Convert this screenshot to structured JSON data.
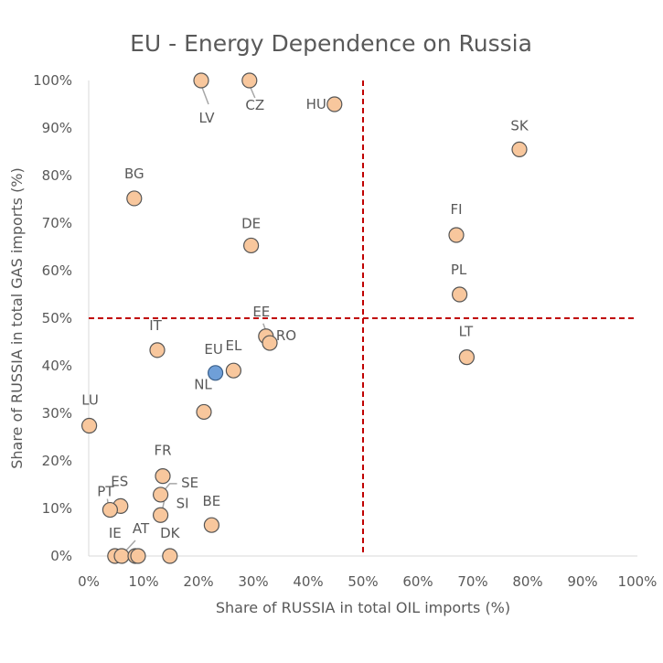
{
  "chart_data": {
    "type": "scatter",
    "title": "EU - Energy Dependence on Russia",
    "xlabel": "Share of RUSSIA in total OIL imports (%)",
    "ylabel": "Share of RUSSIA in total GAS imports (%)",
    "xlim": [
      0,
      100
    ],
    "ylim": [
      0,
      100
    ],
    "x_ticks": [
      "0%",
      "10%",
      "20%",
      "30%",
      "40%",
      "50%",
      "60%",
      "70%",
      "80%",
      "90%",
      "100%"
    ],
    "y_ticks": [
      "0%",
      "10%",
      "20%",
      "30%",
      "40%",
      "50%",
      "60%",
      "70%",
      "80%",
      "90%",
      "100%"
    ],
    "grid": false,
    "reference_lines": [
      {
        "axis": "x",
        "value": 50,
        "style": "dashed",
        "color": "#c00000"
      },
      {
        "axis": "y",
        "value": 50,
        "style": "dashed",
        "color": "#c00000"
      }
    ],
    "colors": {
      "point_fill": "#f8c79d",
      "point_stroke": "#555555",
      "highlight_fill": "#6f9fd8",
      "highlight_stroke": "#3a5f8a"
    },
    "points": [
      {
        "label": "LV",
        "x": 20.5,
        "y": 100
      },
      {
        "label": "CZ",
        "x": 29.3,
        "y": 100
      },
      {
        "label": "HU",
        "x": 44.8,
        "y": 95
      },
      {
        "label": "SK",
        "x": 78.5,
        "y": 85.5
      },
      {
        "label": "BG",
        "x": 8.3,
        "y": 75.2
      },
      {
        "label": "FI",
        "x": 67.0,
        "y": 67.5
      },
      {
        "label": "DE",
        "x": 29.6,
        "y": 65.3
      },
      {
        "label": "PL",
        "x": 67.6,
        "y": 55.0
      },
      {
        "label": "EE",
        "x": 32.3,
        "y": 46.2
      },
      {
        "label": "RO",
        "x": 33.0,
        "y": 44.8
      },
      {
        "label": "IT",
        "x": 12.5,
        "y": 43.3
      },
      {
        "label": "LT",
        "x": 68.9,
        "y": 41.8
      },
      {
        "label": "EL",
        "x": 26.4,
        "y": 39.0
      },
      {
        "label": "EU",
        "x": 23.1,
        "y": 38.5,
        "highlight": true
      },
      {
        "label": "NL",
        "x": 21.0,
        "y": 30.3
      },
      {
        "label": "LU",
        "x": 0.1,
        "y": 27.4
      },
      {
        "label": "FR",
        "x": 13.5,
        "y": 16.8
      },
      {
        "label": "SE",
        "x": 13.1,
        "y": 12.9
      },
      {
        "label": "SI",
        "x": 13.1,
        "y": 8.6
      },
      {
        "label": "ES",
        "x": 5.8,
        "y": 10.5
      },
      {
        "label": "PT",
        "x": 3.9,
        "y": 9.7
      },
      {
        "label": "BE",
        "x": 22.4,
        "y": 6.5
      },
      {
        "label": "IE",
        "x": 4.8,
        "y": 0
      },
      {
        "label": "AT",
        "x": 6.0,
        "y": 0
      },
      {
        "label": "",
        "x": 8.5,
        "y": 0
      },
      {
        "label": "",
        "x": 9.0,
        "y": 0
      },
      {
        "label": "DK",
        "x": 14.8,
        "y": 0
      }
    ]
  }
}
